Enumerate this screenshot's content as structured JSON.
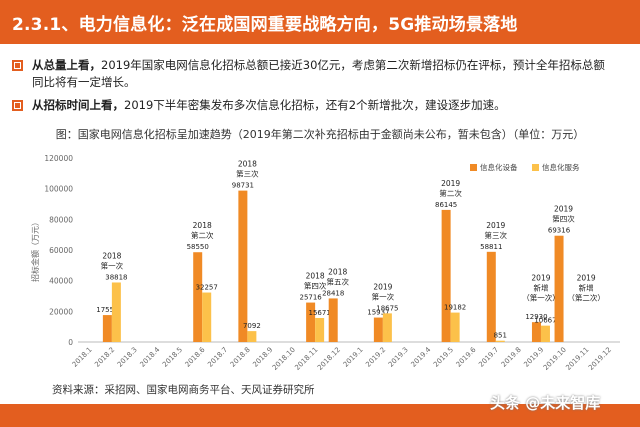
{
  "header": {
    "title": "2.3.1、电力信息化：泛在成国网重要战略方向，5G推动场景落地"
  },
  "bullets": [
    {
      "lead": "从总量上看，",
      "text": "2019年国家电网信息化招标总额已接近30亿元，考虑第二次新增招标仍在评标，预计全年招标总额同比将有一定增长。"
    },
    {
      "lead": "从招标时间上看，",
      "text": "2019下半年密集发布多次信息化招标，还有2个新增批次，建设逐步加速。"
    }
  ],
  "caption": "图：国家电网信息化招标呈加速趋势（2019年第二次补充招标由于金额尚未公布，暂未包含）（单位：万元）",
  "source": "资料来源：采招网、国家电网商务平台、天风证券研究所",
  "watermark": "头条 @未来智库",
  "colors": {
    "orange": "#f08a25",
    "yellow": "#fcc14a",
    "accent": "#e35e1f"
  },
  "chart_data": {
    "type": "bar",
    "ylabel": "招标金额（万元）",
    "ylim": [
      0,
      120000
    ],
    "yticks": [
      0,
      20000,
      40000,
      60000,
      80000,
      100000,
      120000
    ],
    "categories": [
      "2018.1",
      "2018.2",
      "2018.3",
      "2018.4",
      "2018.5",
      "2018.6",
      "2018.7",
      "2018.8",
      "2018.9",
      "2018.10",
      "2018.11",
      "2018.12",
      "2019.1",
      "2019.2",
      "2019.3",
      "2019.4",
      "2019.5",
      "2019.6",
      "2019.7",
      "2019.8",
      "2019.9",
      "2019.10",
      "2019.11",
      "2019.12"
    ],
    "legend_position": "top-right",
    "series": [
      {
        "name": "信息化设备",
        "color": "#f08a25",
        "values": [
          null,
          17554,
          null,
          null,
          null,
          58550,
          null,
          98731,
          null,
          null,
          25716,
          28418,
          null,
          15937,
          null,
          null,
          86145,
          null,
          58811,
          null,
          12930,
          69316,
          null,
          null
        ]
      },
      {
        "name": "信息化服务",
        "color": "#fcc14a",
        "values": [
          null,
          38818,
          null,
          null,
          null,
          32257,
          null,
          7092,
          null,
          null,
          15671,
          null,
          null,
          18675,
          null,
          null,
          19182,
          null,
          851,
          null,
          10667,
          null,
          null,
          null
        ]
      }
    ],
    "annotations": [
      {
        "category": "2018.2",
        "lines": [
          "2018",
          "第一次"
        ]
      },
      {
        "category": "2018.6",
        "lines": [
          "2018",
          "第二次"
        ]
      },
      {
        "category": "2018.8",
        "lines": [
          "2018",
          "第三次"
        ]
      },
      {
        "category": "2018.11",
        "lines": [
          "2018",
          "第四次"
        ]
      },
      {
        "category": "2018.12",
        "lines": [
          "2018",
          "第五次"
        ]
      },
      {
        "category": "2019.2",
        "lines": [
          "2019",
          "第一次"
        ]
      },
      {
        "category": "2019.5",
        "lines": [
          "2019",
          "第二次"
        ]
      },
      {
        "category": "2019.7",
        "lines": [
          "2019",
          "第三次"
        ]
      },
      {
        "category": "2019.9",
        "lines": [
          "2019",
          "新增",
          "（第一次）"
        ]
      },
      {
        "category": "2019.10",
        "lines": [
          "2019",
          "第四次"
        ]
      },
      {
        "category": "2019.11",
        "lines": [
          "2019",
          "新增",
          "（第二次）"
        ]
      }
    ]
  }
}
